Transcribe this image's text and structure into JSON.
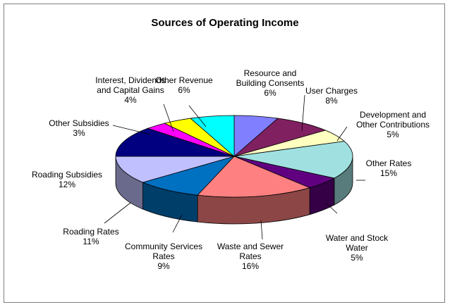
{
  "chart_data": {
    "type": "pie",
    "title": "Sources of Operating Income",
    "slices": [
      {
        "label": [
          "Resource and",
          "Building Consents"
        ],
        "pct_label": "6%",
        "value": 6,
        "color": "#8080ff"
      },
      {
        "label": [
          "User Charges"
        ],
        "pct_label": "8%",
        "value": 8,
        "color": "#802060"
      },
      {
        "label": [
          "Development and",
          "Other Contributions"
        ],
        "pct_label": "5%",
        "value": 5,
        "color": "#ffffc0"
      },
      {
        "label": [
          "Other Rates"
        ],
        "pct_label": "15%",
        "value": 15,
        "color": "#a0e0e0"
      },
      {
        "label": [
          "Water and Stock",
          "Water"
        ],
        "pct_label": "5%",
        "value": 5,
        "color": "#600080"
      },
      {
        "label": [
          "Waste and Sewer",
          "Rates"
        ],
        "pct_label": "16%",
        "value": 16,
        "color": "#ff8080"
      },
      {
        "label": [
          "Community Services",
          "Rates"
        ],
        "pct_label": "9%",
        "value": 9,
        "color": "#0070c0"
      },
      {
        "label": [
          "Roading Rates"
        ],
        "pct_label": "11%",
        "value": 11,
        "color": "#c0c0ff"
      },
      {
        "label": [
          "Roading Subsidies"
        ],
        "pct_label": "12%",
        "value": 12,
        "color": "#000080"
      },
      {
        "label": [
          "Other Subsidies"
        ],
        "pct_label": "3%",
        "value": 3,
        "color": "#ff00ff"
      },
      {
        "label": [
          "Interest, Dividends",
          "and Capital Gains"
        ],
        "pct_label": "4%",
        "value": 4,
        "color": "#ffff00"
      },
      {
        "label": [
          "Other Revenue"
        ],
        "pct_label": "6%",
        "value": 6,
        "color": "#00ffff"
      }
    ],
    "legend": "none",
    "style": "3d-pie"
  }
}
